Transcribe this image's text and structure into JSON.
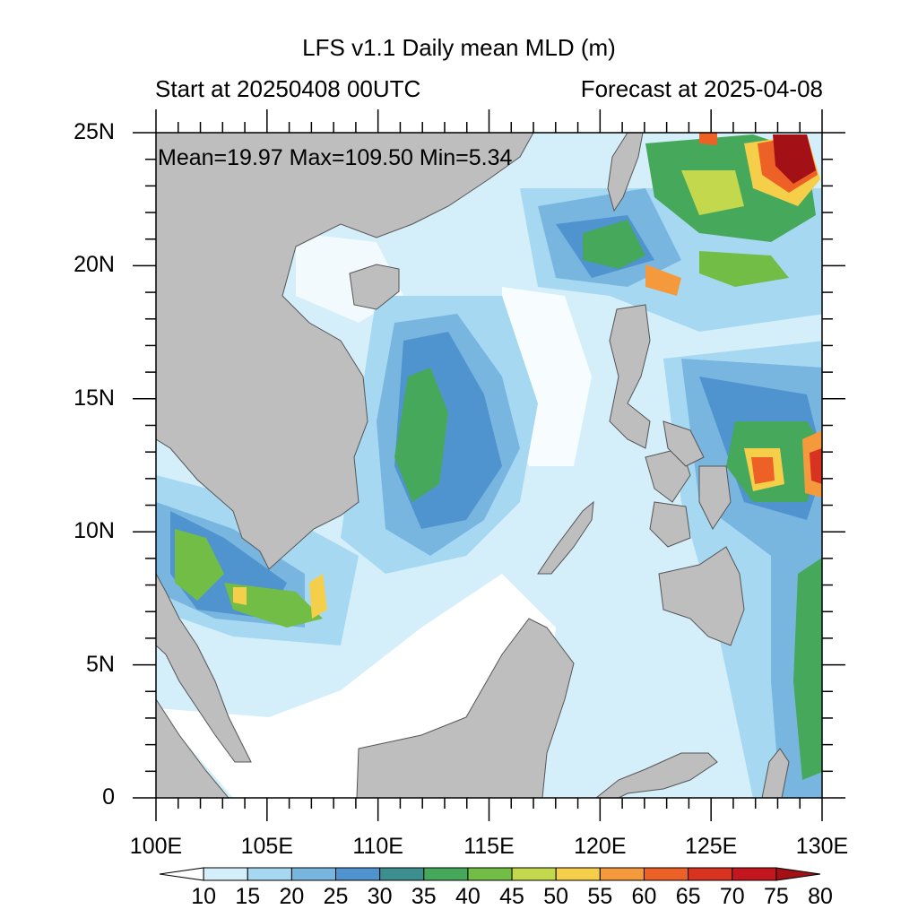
{
  "header": {
    "title": "LFS v1.1 Daily mean MLD (m)",
    "start_text": "Start at 20250408 00UTC",
    "forecast_text": "Forecast at 2025-04-08"
  },
  "stats_text": "Mean=19.97  Max=109.50  Min=5.34",
  "lat_labels": [
    "0",
    "5N",
    "10N",
    "15N",
    "20N",
    "25N"
  ],
  "lon_labels": [
    "100E",
    "105E",
    "110E",
    "115E",
    "120E",
    "125E",
    "130E"
  ],
  "colorbar": {
    "labels": [
      "10",
      "15",
      "20",
      "25",
      "30",
      "35",
      "40",
      "45",
      "50",
      "55",
      "60",
      "65",
      "70",
      "75",
      "80"
    ],
    "colors": [
      "#ffffff",
      "#d4eefa",
      "#a6d8f2",
      "#78b6e0",
      "#4f94cf",
      "#3d8f8f",
      "#46a85a",
      "#72bd45",
      "#c3d84c",
      "#f6cf4a",
      "#f59a3c",
      "#ee6126",
      "#d83221",
      "#c4161e",
      "#a31116"
    ]
  },
  "map_colors": {
    "land": "#bebebe",
    "coast": "#555555"
  }
}
